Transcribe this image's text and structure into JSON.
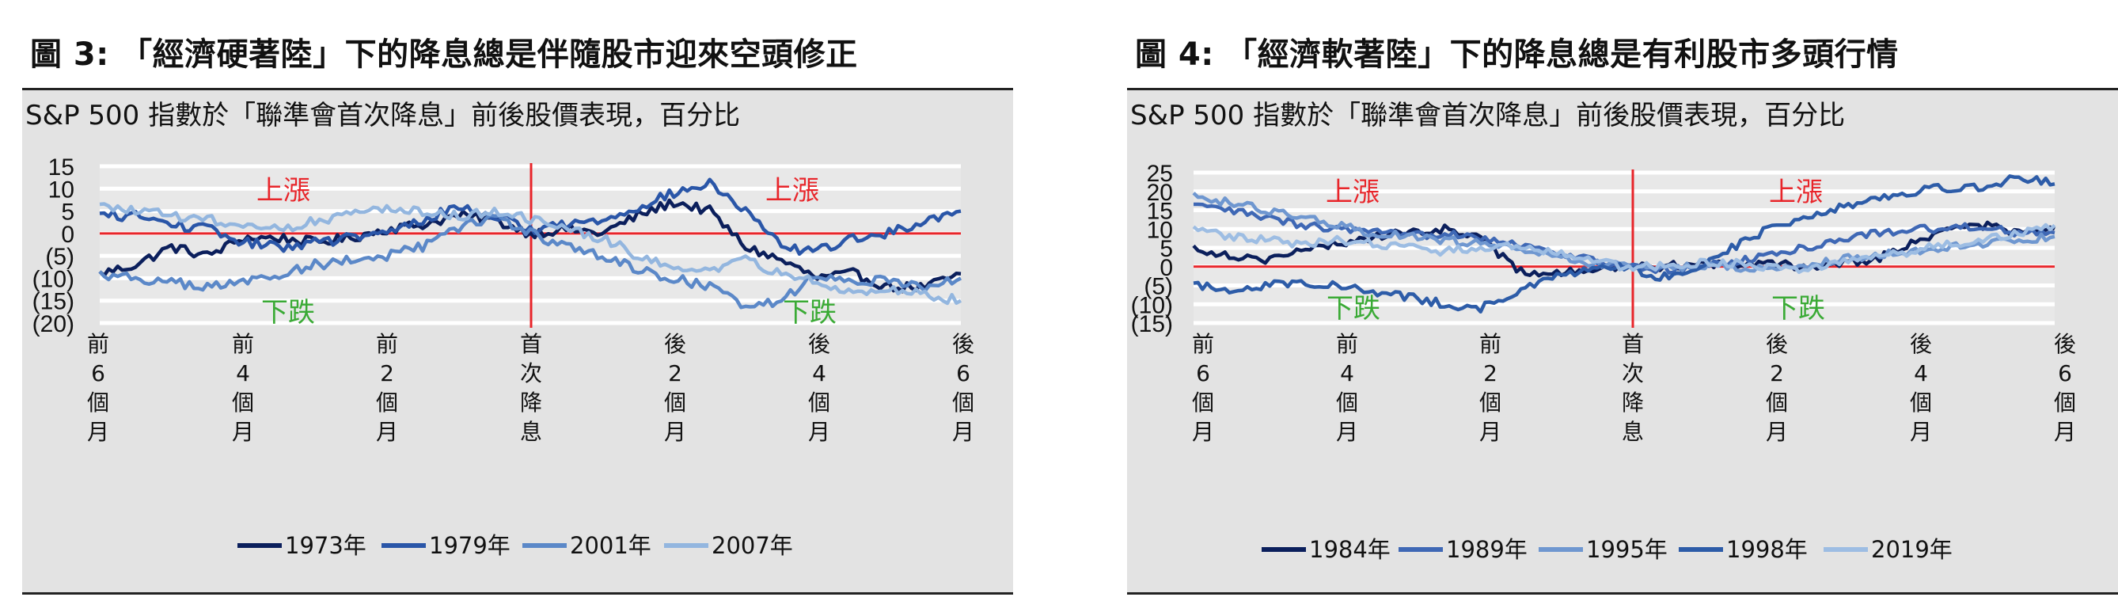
{
  "charts": [
    {
      "figure_title": "圖 3: 「經濟硬著陸」下的降息總是伴隨股市迎來空頭修正",
      "subtitle": "S&P 500 指數於「聯準會首次降息」前後股價表現，百分比"
    },
    {
      "figure_title": "圖 4: 「經濟軟著陸」下的降息總是有利股市多頭行情",
      "subtitle": "S&P 500 指數於「聯準會首次降息」前後股價表現，百分比"
    }
  ],
  "colors": {
    "zero_line": "#e8252a",
    "up_label": "#e8252a",
    "down_label": "#3aaa35",
    "background": "#e3e3e3",
    "grid": "#ffffff"
  },
  "chart_data": [
    {
      "type": "line",
      "title": "圖 3: 「經濟硬著陸」下的降息總是伴隨股市迎來空頭修正",
      "subtitle": "S&P 500 指數於「聯準會首次降息」前後股價表現，百分比",
      "ylim": [
        -20,
        15
      ],
      "y_ticks": [
        15,
        10,
        5,
        0,
        -5,
        -10,
        -15,
        -20
      ],
      "y_tick_labels": [
        "15",
        "10",
        "5",
        "0",
        "(5)",
        "(10)",
        "(15)",
        "(20)"
      ],
      "x_tick_labels": [
        "前\n6\n個\n月",
        "前\n4\n個\n月",
        "前\n2\n個\n月",
        "首\n次\n降\n息",
        "後\n2\n個\n月",
        "後\n4\n個\n月",
        "後\n6\n個\n月"
      ],
      "annotations": {
        "up_left": "上漲",
        "up_right": "上漲",
        "down_left": "下跌",
        "down_right": "下跌"
      },
      "x": [
        -6,
        -5.5,
        -5,
        -4.5,
        -4,
        -3.5,
        -3,
        -2.5,
        -2,
        -1.5,
        -1,
        -0.5,
        0,
        0.5,
        1,
        1.5,
        2,
        2.5,
        3,
        3.5,
        4,
        4.5,
        5,
        5.5,
        6
      ],
      "series": [
        {
          "name": "1973年",
          "color": "#0b1f5c",
          "values": [
            -9,
            -7,
            -3,
            -5,
            -1,
            -1,
            -2,
            -1,
            1,
            2,
            4,
            3,
            0,
            1,
            0,
            4,
            7,
            5,
            -3,
            -6,
            -10,
            -9,
            -12,
            -12,
            -9
          ]
        },
        {
          "name": "1979年",
          "color": "#2a56a8",
          "values": [
            4,
            4,
            2,
            1,
            -2,
            -3,
            -2,
            -1,
            0,
            3,
            6,
            4,
            1,
            2,
            3,
            6,
            9,
            11,
            5,
            -3,
            -4,
            -1,
            0,
            3,
            5
          ]
        },
        {
          "name": "2001年",
          "color": "#5b88c8",
          "values": [
            -9,
            -10,
            -11,
            -12,
            -11,
            -9,
            -7,
            -6,
            -5,
            -3,
            1,
            4,
            0,
            -3,
            -5,
            -8,
            -10,
            -12,
            -16,
            -15,
            -9,
            -11,
            -10,
            -12,
            -10
          ]
        },
        {
          "name": "2007年",
          "color": "#93b6df",
          "values": [
            6,
            5,
            4,
            3,
            2,
            1,
            3,
            4,
            6,
            5,
            4,
            5,
            3,
            1,
            -1,
            -5,
            -7,
            -9,
            -6,
            -9,
            -11,
            -13,
            -12,
            -14,
            -15
          ]
        }
      ]
    },
    {
      "type": "line",
      "title": "圖 4: 「經濟軟著陸」下的降息總是有利股市多頭行情",
      "subtitle": "S&P 500 指數於「聯準會首次降息」前後股價表現，百分比",
      "ylim": [
        -15,
        25
      ],
      "y_ticks": [
        25,
        20,
        15,
        10,
        5,
        0,
        -5,
        -10,
        -15
      ],
      "y_tick_labels": [
        "25",
        "20",
        "15",
        "10",
        "5",
        "0",
        "(5)",
        "(10)",
        "(15)"
      ],
      "x_tick_labels": [
        "前\n6\n個\n月",
        "前\n4\n個\n月",
        "前\n2\n個\n月",
        "首\n次\n降\n息",
        "後\n2\n個\n月",
        "後\n4\n個\n月",
        "後\n6\n個\n月"
      ],
      "annotations": {
        "up_left": "上漲",
        "up_right": "上漲",
        "down_left": "下跌",
        "down_right": "下跌"
      },
      "x": [
        -6,
        -5.5,
        -5,
        -4.5,
        -4,
        -3.5,
        -3,
        -2.5,
        -2,
        -1.5,
        -1,
        -0.5,
        0,
        0.5,
        1,
        1.5,
        2,
        2.5,
        3,
        3.5,
        4,
        4.5,
        5,
        5.5,
        6
      ],
      "series": [
        {
          "name": "1984年",
          "color": "#0b1f5c",
          "values": [
            5,
            3,
            2,
            4,
            6,
            8,
            9,
            10,
            8,
            -1,
            -2,
            -1,
            0,
            0,
            1,
            0,
            1,
            0,
            1,
            2,
            6,
            10,
            11,
            9,
            10
          ]
        },
        {
          "name": "1989年",
          "color": "#3f68b5",
          "values": [
            16,
            15,
            13,
            11,
            10,
            9,
            8,
            9,
            8,
            6,
            4,
            2,
            0,
            -1,
            0,
            1,
            3,
            5,
            7,
            9,
            10,
            10,
            11,
            9,
            9
          ]
        },
        {
          "name": "1995年",
          "color": "#6f97d0",
          "values": [
            19,
            17,
            15,
            13,
            11,
            9,
            8,
            7,
            6,
            5,
            3,
            1,
            0,
            0,
            0,
            0,
            -1,
            0,
            2,
            3,
            4,
            5,
            6,
            7,
            8
          ]
        },
        {
          "name": "1998年",
          "color": "#2d5ca8",
          "values": [
            -5,
            -6,
            -5,
            -4,
            -5,
            -7,
            -8,
            -10,
            -11,
            -7,
            -3,
            -1,
            0,
            -3,
            0,
            5,
            10,
            13,
            16,
            18,
            20,
            21,
            21,
            24,
            22
          ]
        },
        {
          "name": "2019年",
          "color": "#9dbde3",
          "values": [
            10,
            8,
            7,
            6,
            7,
            6,
            5,
            4,
            5,
            6,
            4,
            2,
            0,
            0,
            1,
            1,
            0,
            -1,
            1,
            3,
            4,
            6,
            7,
            9,
            11
          ]
        }
      ]
    }
  ]
}
